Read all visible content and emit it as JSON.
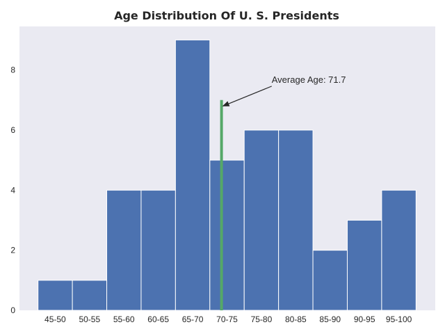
{
  "chart_data": {
    "type": "bar",
    "title": "Age Distribution Of U. S.  Presidents",
    "xlabel": "",
    "ylabel": "",
    "categories": [
      "45-50",
      "50-55",
      "55-60",
      "60-65",
      "65-70",
      "70-75",
      "75-80",
      "80-85",
      "85-90",
      "90-95",
      "95-100"
    ],
    "values": [
      1,
      1,
      4,
      4,
      9,
      5,
      6,
      6,
      2,
      3,
      4
    ],
    "bin_edges": [
      45,
      50,
      55,
      60,
      65,
      70,
      75,
      80,
      85,
      90,
      95,
      100
    ],
    "ylim": [
      0,
      9.45
    ],
    "yticks": [
      0,
      2,
      4,
      6,
      8
    ],
    "grid": false,
    "average_line": {
      "x": 71.7,
      "y_top": 7
    },
    "annotation": {
      "text": "Average Age: 71.7",
      "x": 71.7,
      "y": 6.8,
      "text_x": 79,
      "text_y": 7.6
    },
    "colors": {
      "bar": "#4c72b0",
      "bar_edge": "#ffffff",
      "average_line": "#55a868",
      "plot_background": "#eaeaf2",
      "text": "#262626"
    }
  }
}
